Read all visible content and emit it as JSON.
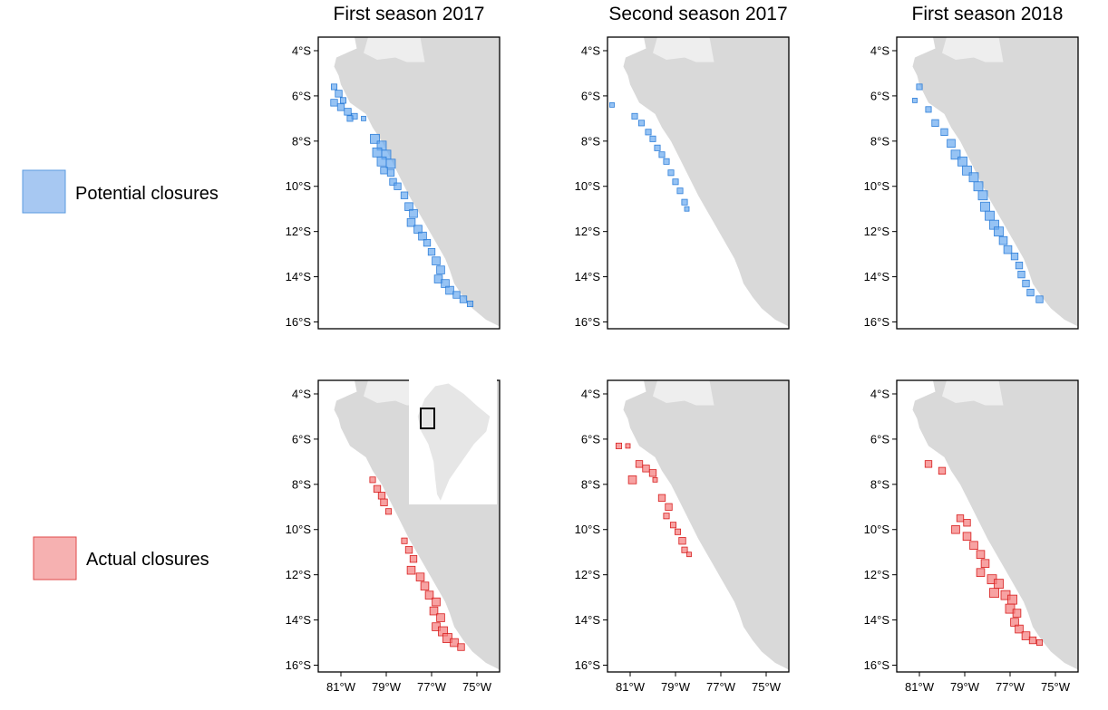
{
  "columns": [
    {
      "title": "First season 2017"
    },
    {
      "title": "Second season 2017"
    },
    {
      "title": "First season 2018"
    }
  ],
  "legend": [
    {
      "label": "Potential closures",
      "fill": "#a7c8f2",
      "stroke": "#5b9be0"
    },
    {
      "label": "Actual closures",
      "fill": "#f6b1b1",
      "stroke": "#e04a4a"
    }
  ],
  "axes": {
    "lat_ticks": [
      "4°S",
      "6°S",
      "8°S",
      "10°S",
      "12°S",
      "14°S",
      "16°S"
    ],
    "lon_ticks": [
      "81°W",
      "79°W",
      "77°W",
      "75°W"
    ],
    "lat_range": [
      -16.3,
      -3.4
    ],
    "lon_range": [
      -82.0,
      -74.0
    ]
  },
  "colors": {
    "land_main": "#d9d9d9",
    "land_neighbor": "#eeeeee",
    "potential_fill": "#6aaaf0",
    "potential_stroke": "#2f7fd9",
    "actual_fill": "#f47a7a",
    "actual_stroke": "#d81e1e",
    "inset_land": "#e6e6e6",
    "inset_box": "#000000"
  },
  "inset": {
    "panel": "row1-col0",
    "description_lat_range": [
      -8.5,
      -4.0
    ]
  },
  "closures": {
    "row0": [
      [
        [
          -81.3,
          -5.6,
          0.25
        ],
        [
          -81.1,
          -5.9,
          0.3
        ],
        [
          -81.3,
          -6.3,
          0.3
        ],
        [
          -81.0,
          -6.5,
          0.3
        ],
        [
          -80.7,
          -6.7,
          0.3
        ],
        [
          -80.4,
          -6.9,
          0.25
        ],
        [
          -80.9,
          -6.2,
          0.25
        ],
        [
          -80.6,
          -7.0,
          0.25
        ],
        [
          -80.0,
          -7.0,
          0.2
        ],
        [
          -79.5,
          -7.9,
          0.4
        ],
        [
          -79.2,
          -8.2,
          0.4
        ],
        [
          -79.4,
          -8.5,
          0.4
        ],
        [
          -79.0,
          -8.6,
          0.4
        ],
        [
          -79.2,
          -8.9,
          0.4
        ],
        [
          -78.8,
          -9.0,
          0.4
        ],
        [
          -78.8,
          -9.4,
          0.3
        ],
        [
          -79.1,
          -9.3,
          0.3
        ],
        [
          -78.7,
          -9.8,
          0.3
        ],
        [
          -78.5,
          -10.0,
          0.3
        ],
        [
          -78.2,
          -10.4,
          0.3
        ],
        [
          -78.0,
          -10.9,
          0.35
        ],
        [
          -77.8,
          -11.2,
          0.35
        ],
        [
          -77.9,
          -11.6,
          0.35
        ],
        [
          -77.6,
          -11.9,
          0.35
        ],
        [
          -77.4,
          -12.2,
          0.35
        ],
        [
          -77.2,
          -12.5,
          0.3
        ],
        [
          -77.0,
          -12.9,
          0.3
        ],
        [
          -76.8,
          -13.3,
          0.35
        ],
        [
          -76.6,
          -13.7,
          0.35
        ],
        [
          -76.7,
          -14.1,
          0.35
        ],
        [
          -76.4,
          -14.3,
          0.35
        ],
        [
          -76.2,
          -14.6,
          0.35
        ],
        [
          -75.9,
          -14.8,
          0.3
        ],
        [
          -75.6,
          -15.0,
          0.3
        ],
        [
          -75.3,
          -15.2,
          0.25
        ]
      ],
      [
        [
          -81.8,
          -6.4,
          0.2
        ],
        [
          -80.8,
          -6.9,
          0.25
        ],
        [
          -80.5,
          -7.2,
          0.25
        ],
        [
          -80.2,
          -7.6,
          0.25
        ],
        [
          -80.0,
          -7.9,
          0.25
        ],
        [
          -79.8,
          -8.3,
          0.25
        ],
        [
          -79.6,
          -8.6,
          0.25
        ],
        [
          -79.4,
          -8.9,
          0.25
        ],
        [
          -79.2,
          -9.4,
          0.25
        ],
        [
          -79.0,
          -9.8,
          0.25
        ],
        [
          -78.8,
          -10.2,
          0.25
        ],
        [
          -78.6,
          -10.7,
          0.25
        ],
        [
          -78.5,
          -11.0,
          0.2
        ]
      ],
      [
        [
          -81.0,
          -5.6,
          0.25
        ],
        [
          -81.2,
          -6.2,
          0.2
        ],
        [
          -80.6,
          -6.6,
          0.25
        ],
        [
          -80.3,
          -7.2,
          0.3
        ],
        [
          -79.9,
          -7.6,
          0.3
        ],
        [
          -79.6,
          -8.1,
          0.35
        ],
        [
          -79.4,
          -8.6,
          0.4
        ],
        [
          -79.1,
          -8.9,
          0.4
        ],
        [
          -78.9,
          -9.3,
          0.4
        ],
        [
          -78.6,
          -9.6,
          0.4
        ],
        [
          -78.4,
          -10.0,
          0.4
        ],
        [
          -78.2,
          -10.4,
          0.4
        ],
        [
          -78.1,
          -10.9,
          0.4
        ],
        [
          -77.9,
          -11.3,
          0.4
        ],
        [
          -77.7,
          -11.7,
          0.4
        ],
        [
          -77.5,
          -12.0,
          0.4
        ],
        [
          -77.3,
          -12.4,
          0.35
        ],
        [
          -77.1,
          -12.8,
          0.35
        ],
        [
          -76.8,
          -13.1,
          0.3
        ],
        [
          -76.6,
          -13.5,
          0.3
        ],
        [
          -76.5,
          -13.9,
          0.3
        ],
        [
          -76.3,
          -14.3,
          0.3
        ],
        [
          -76.1,
          -14.7,
          0.3
        ],
        [
          -75.7,
          -15.0,
          0.3
        ]
      ]
    ],
    "row1": [
      [
        [
          -79.6,
          -7.8,
          0.25
        ],
        [
          -79.4,
          -8.2,
          0.3
        ],
        [
          -79.2,
          -8.5,
          0.3
        ],
        [
          -79.1,
          -8.8,
          0.3
        ],
        [
          -78.9,
          -9.2,
          0.25
        ],
        [
          -78.2,
          -10.5,
          0.25
        ],
        [
          -78.0,
          -10.9,
          0.3
        ],
        [
          -77.8,
          -11.3,
          0.3
        ],
        [
          -77.9,
          -11.8,
          0.35
        ],
        [
          -77.5,
          -12.1,
          0.35
        ],
        [
          -77.3,
          -12.5,
          0.35
        ],
        [
          -77.1,
          -12.9,
          0.35
        ],
        [
          -76.8,
          -13.2,
          0.35
        ],
        [
          -76.9,
          -13.6,
          0.35
        ],
        [
          -76.6,
          -13.9,
          0.35
        ],
        [
          -76.8,
          -14.3,
          0.35
        ],
        [
          -76.5,
          -14.5,
          0.4
        ],
        [
          -76.3,
          -14.8,
          0.4
        ],
        [
          -76.0,
          -15.0,
          0.35
        ],
        [
          -75.7,
          -15.2,
          0.3
        ]
      ],
      [
        [
          -81.5,
          -6.3,
          0.25
        ],
        [
          -81.1,
          -6.3,
          0.2
        ],
        [
          -80.6,
          -7.1,
          0.3
        ],
        [
          -80.3,
          -7.3,
          0.3
        ],
        [
          -80.0,
          -7.5,
          0.3
        ],
        [
          -79.9,
          -7.8,
          0.2
        ],
        [
          -80.9,
          -7.8,
          0.35
        ],
        [
          -79.6,
          -8.6,
          0.3
        ],
        [
          -79.3,
          -9.0,
          0.3
        ],
        [
          -79.4,
          -9.4,
          0.25
        ],
        [
          -79.1,
          -9.8,
          0.25
        ],
        [
          -78.9,
          -10.1,
          0.25
        ],
        [
          -78.7,
          -10.5,
          0.3
        ],
        [
          -78.6,
          -10.9,
          0.25
        ],
        [
          -78.4,
          -11.1,
          0.2
        ]
      ],
      [
        [
          -80.6,
          -7.1,
          0.3
        ],
        [
          -80.0,
          -7.4,
          0.3
        ],
        [
          -79.2,
          -9.5,
          0.3
        ],
        [
          -78.9,
          -9.7,
          0.3
        ],
        [
          -79.4,
          -10.0,
          0.35
        ],
        [
          -78.9,
          -10.3,
          0.35
        ],
        [
          -78.6,
          -10.7,
          0.35
        ],
        [
          -78.3,
          -11.1,
          0.35
        ],
        [
          -78.1,
          -11.5,
          0.35
        ],
        [
          -78.3,
          -11.9,
          0.35
        ],
        [
          -77.8,
          -12.2,
          0.4
        ],
        [
          -77.5,
          -12.4,
          0.4
        ],
        [
          -77.7,
          -12.8,
          0.4
        ],
        [
          -77.2,
          -12.9,
          0.4
        ],
        [
          -76.9,
          -13.1,
          0.4
        ],
        [
          -77.0,
          -13.5,
          0.4
        ],
        [
          -76.7,
          -13.7,
          0.35
        ],
        [
          -76.8,
          -14.1,
          0.35
        ],
        [
          -76.6,
          -14.4,
          0.35
        ],
        [
          -76.3,
          -14.7,
          0.35
        ],
        [
          -76.0,
          -14.9,
          0.3
        ],
        [
          -75.7,
          -15.0,
          0.25
        ]
      ]
    ]
  }
}
